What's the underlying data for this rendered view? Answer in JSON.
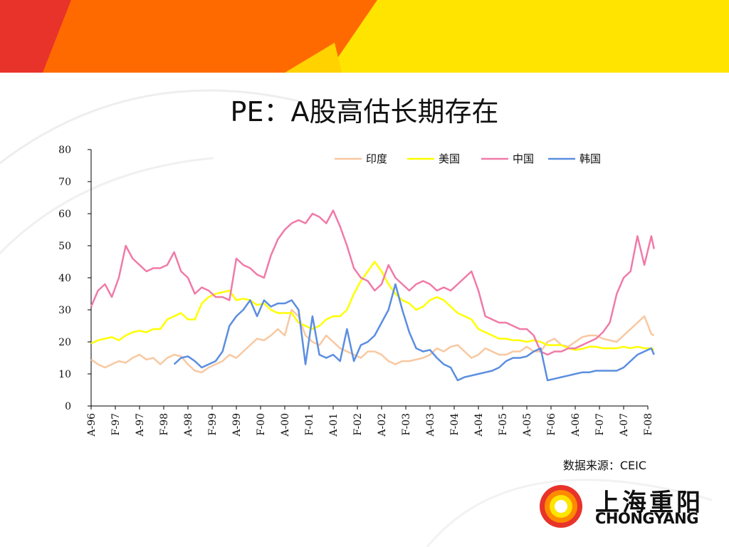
{
  "title": "PE：A股高估长期存在",
  "source": "数据来源：CEIC",
  "logo": {
    "cn": "上海重阳",
    "en": "CHONGYANG"
  },
  "colors": {
    "banner_red": "#e8332a",
    "banner_orange": "#ff6a00",
    "banner_yellow": "#ffe400"
  },
  "chart_data": {
    "type": "line",
    "title": "",
    "xlabel": "",
    "ylabel": "",
    "ylim": [
      0,
      80
    ],
    "yticks": [
      0,
      10,
      20,
      30,
      40,
      50,
      60,
      70,
      80
    ],
    "x_labels": [
      "A-96",
      "F-97",
      "A-97",
      "F-98",
      "A-98",
      "F-99",
      "A-99",
      "F-00",
      "A-00",
      "F-01",
      "A-01",
      "F-02",
      "A-02",
      "F-03",
      "A-03",
      "F-04",
      "A-04",
      "F-05",
      "A-05",
      "F-06",
      "A-06",
      "F-07",
      "A-07",
      "F-08"
    ],
    "legend_position": "top-right",
    "series": [
      {
        "name": "印度",
        "color": "#f8c8a0",
        "values": [
          [
            0,
            14.5
          ],
          [
            1,
            13
          ],
          [
            2,
            12
          ],
          [
            3,
            13
          ],
          [
            4,
            14
          ],
          [
            5,
            13.5
          ],
          [
            6,
            15
          ],
          [
            7,
            16
          ],
          [
            8,
            14.5
          ],
          [
            9,
            15
          ],
          [
            10,
            13
          ],
          [
            11,
            15
          ],
          [
            12,
            16
          ],
          [
            13,
            15.5
          ],
          [
            14,
            13
          ],
          [
            15,
            11
          ],
          [
            16,
            10.5
          ],
          [
            17,
            12
          ],
          [
            18,
            13
          ],
          [
            19,
            14
          ],
          [
            20,
            16
          ],
          [
            21,
            15
          ],
          [
            22,
            17
          ],
          [
            23,
            19
          ],
          [
            24,
            21
          ],
          [
            25,
            20.5
          ],
          [
            26,
            22
          ],
          [
            27,
            24
          ],
          [
            28,
            22
          ],
          [
            29,
            30
          ],
          [
            30,
            28
          ],
          [
            31,
            22
          ],
          [
            32,
            20
          ],
          [
            33,
            19
          ],
          [
            34,
            22
          ],
          [
            35,
            20
          ],
          [
            36,
            18
          ],
          [
            37,
            17
          ],
          [
            38,
            16
          ],
          [
            39,
            15
          ],
          [
            40,
            17
          ],
          [
            41,
            17
          ],
          [
            42,
            16
          ],
          [
            43,
            14
          ],
          [
            44,
            13
          ],
          [
            45,
            14
          ],
          [
            46,
            14
          ],
          [
            47,
            14.5
          ],
          [
            48,
            15
          ],
          [
            49,
            16
          ],
          [
            50,
            18
          ],
          [
            51,
            17
          ],
          [
            52,
            18.5
          ],
          [
            53,
            19
          ],
          [
            54,
            17
          ],
          [
            55,
            15
          ],
          [
            56,
            16
          ],
          [
            57,
            18
          ],
          [
            58,
            17
          ],
          [
            59,
            16
          ],
          [
            60,
            16
          ],
          [
            61,
            17
          ],
          [
            62,
            17
          ],
          [
            63,
            18.5
          ],
          [
            64,
            17
          ],
          [
            65,
            17
          ],
          [
            66,
            20
          ],
          [
            67,
            21
          ],
          [
            68,
            19
          ],
          [
            69,
            18.5
          ],
          [
            70,
            20
          ],
          [
            71,
            21.5
          ],
          [
            72,
            22
          ],
          [
            73,
            22
          ],
          [
            74,
            21
          ],
          [
            75,
            20.5
          ],
          [
            76,
            20
          ],
          [
            77,
            22
          ],
          [
            78,
            24
          ],
          [
            79,
            26
          ],
          [
            80,
            28
          ],
          [
            81,
            22.5
          ],
          [
            81.4,
            22
          ]
        ]
      },
      {
        "name": "美国",
        "color": "#ffff00",
        "values": [
          [
            0,
            19.5
          ],
          [
            1,
            20.5
          ],
          [
            2,
            21
          ],
          [
            3,
            21.5
          ],
          [
            4,
            20.5
          ],
          [
            5,
            22
          ],
          [
            6,
            23
          ],
          [
            7,
            23.5
          ],
          [
            8,
            23
          ],
          [
            9,
            24
          ],
          [
            10,
            24
          ],
          [
            11,
            27
          ],
          [
            12,
            28
          ],
          [
            13,
            29
          ],
          [
            14,
            27
          ],
          [
            15,
            27
          ],
          [
            16,
            32
          ],
          [
            17,
            34
          ],
          [
            18,
            35
          ],
          [
            19,
            35.5
          ],
          [
            20,
            36
          ],
          [
            21,
            33
          ],
          [
            22,
            33.5
          ],
          [
            23,
            33
          ],
          [
            24,
            31.5
          ],
          [
            25,
            32
          ],
          [
            26,
            30
          ],
          [
            27,
            29
          ],
          [
            28,
            29
          ],
          [
            29,
            29
          ],
          [
            30,
            26
          ],
          [
            31,
            25
          ],
          [
            32,
            24
          ],
          [
            33,
            25
          ],
          [
            34,
            27
          ],
          [
            35,
            28
          ],
          [
            36,
            28
          ],
          [
            37,
            30
          ],
          [
            38,
            35
          ],
          [
            39,
            39
          ],
          [
            40,
            42
          ],
          [
            41,
            45
          ],
          [
            42,
            42
          ],
          [
            43,
            38
          ],
          [
            44,
            35
          ],
          [
            45,
            33
          ],
          [
            46,
            32
          ],
          [
            47,
            30
          ],
          [
            48,
            31
          ],
          [
            49,
            33
          ],
          [
            50,
            34
          ],
          [
            51,
            33
          ],
          [
            52,
            31
          ],
          [
            53,
            29
          ],
          [
            54,
            28
          ],
          [
            55,
            27
          ],
          [
            56,
            24
          ],
          [
            57,
            23
          ],
          [
            58,
            22
          ],
          [
            59,
            21
          ],
          [
            60,
            21
          ],
          [
            61,
            20.5
          ],
          [
            62,
            20.5
          ],
          [
            63,
            20
          ],
          [
            64,
            20.5
          ],
          [
            65,
            20
          ],
          [
            66,
            19
          ],
          [
            67,
            19
          ],
          [
            68,
            19
          ],
          [
            69,
            18
          ],
          [
            70,
            17.5
          ],
          [
            71,
            17.8
          ],
          [
            72,
            18.5
          ],
          [
            73,
            18.5
          ],
          [
            74,
            18
          ],
          [
            75,
            18
          ],
          [
            76,
            18
          ],
          [
            77,
            18.5
          ],
          [
            78,
            18
          ],
          [
            79,
            18.5
          ],
          [
            80,
            18
          ],
          [
            81,
            18
          ],
          [
            81.4,
            17.5
          ]
        ]
      },
      {
        "name": "中国",
        "color": "#f07aa8",
        "values": [
          [
            0,
            31
          ],
          [
            1,
            36
          ],
          [
            2,
            38
          ],
          [
            3,
            34
          ],
          [
            4,
            40
          ],
          [
            5,
            50
          ],
          [
            6,
            46
          ],
          [
            7,
            44
          ],
          [
            8,
            42
          ],
          [
            9,
            43
          ],
          [
            10,
            43
          ],
          [
            11,
            44
          ],
          [
            12,
            48
          ],
          [
            13,
            42
          ],
          [
            14,
            40
          ],
          [
            15,
            35
          ],
          [
            16,
            37
          ],
          [
            17,
            36
          ],
          [
            18,
            34
          ],
          [
            19,
            34
          ],
          [
            20,
            33
          ],
          [
            21,
            46
          ],
          [
            22,
            44
          ],
          [
            23,
            43
          ],
          [
            24,
            41
          ],
          [
            25,
            40
          ],
          [
            26,
            47
          ],
          [
            27,
            52
          ],
          [
            28,
            55
          ],
          [
            29,
            57
          ],
          [
            30,
            58
          ],
          [
            31,
            57
          ],
          [
            32,
            60
          ],
          [
            33,
            59
          ],
          [
            34,
            57
          ],
          [
            35,
            61
          ],
          [
            36,
            56
          ],
          [
            37,
            50
          ],
          [
            38,
            43
          ],
          [
            39,
            40
          ],
          [
            40,
            39
          ],
          [
            41,
            36
          ],
          [
            42,
            38
          ],
          [
            43,
            44
          ],
          [
            44,
            40
          ],
          [
            45,
            38
          ],
          [
            46,
            36
          ],
          [
            47,
            38
          ],
          [
            48,
            39
          ],
          [
            49,
            38
          ],
          [
            50,
            36
          ],
          [
            51,
            37
          ],
          [
            52,
            36
          ],
          [
            53,
            38
          ],
          [
            54,
            40
          ],
          [
            55,
            42
          ],
          [
            56,
            36
          ],
          [
            57,
            28
          ],
          [
            58,
            27
          ],
          [
            59,
            26
          ],
          [
            60,
            26
          ],
          [
            61,
            25
          ],
          [
            62,
            24
          ],
          [
            63,
            24
          ],
          [
            64,
            22
          ],
          [
            65,
            17
          ],
          [
            66,
            16
          ],
          [
            67,
            17
          ],
          [
            68,
            17
          ],
          [
            69,
            18
          ],
          [
            70,
            18
          ],
          [
            71,
            19
          ],
          [
            72,
            20
          ],
          [
            73,
            21
          ],
          [
            74,
            23
          ],
          [
            75,
            26
          ],
          [
            76,
            35
          ],
          [
            77,
            40
          ],
          [
            78,
            42
          ],
          [
            79,
            53
          ],
          [
            80,
            44
          ],
          [
            81,
            53
          ],
          [
            81.4,
            49
          ]
        ]
      },
      {
        "name": "韩国",
        "color": "#5b8ee0",
        "values": [
          [
            12,
            13
          ],
          [
            13,
            15
          ],
          [
            14,
            15.5
          ],
          [
            15,
            14
          ],
          [
            16,
            12
          ],
          [
            17,
            13
          ],
          [
            18,
            14
          ],
          [
            19,
            17
          ],
          [
            20,
            25
          ],
          [
            21,
            28
          ],
          [
            22,
            30
          ],
          [
            23,
            33
          ],
          [
            24,
            28
          ],
          [
            25,
            33
          ],
          [
            26,
            31
          ],
          [
            27,
            32
          ],
          [
            28,
            32
          ],
          [
            29,
            33
          ],
          [
            30,
            30
          ],
          [
            31,
            13
          ],
          [
            32,
            28
          ],
          [
            33,
            16
          ],
          [
            34,
            15
          ],
          [
            35,
            16
          ],
          [
            36,
            14
          ],
          [
            37,
            24
          ],
          [
            38,
            14
          ],
          [
            39,
            19
          ],
          [
            40,
            20
          ],
          [
            41,
            22
          ],
          [
            42,
            26
          ],
          [
            43,
            30
          ],
          [
            44,
            38
          ],
          [
            45,
            30
          ],
          [
            46,
            23
          ],
          [
            47,
            18
          ],
          [
            48,
            17
          ],
          [
            49,
            17.5
          ],
          [
            50,
            15
          ],
          [
            51,
            13
          ],
          [
            52,
            12
          ],
          [
            53,
            8
          ],
          [
            54,
            9
          ],
          [
            55,
            9.5
          ],
          [
            56,
            10
          ],
          [
            57,
            10.5
          ],
          [
            58,
            11
          ],
          [
            59,
            12
          ],
          [
            60,
            14
          ],
          [
            61,
            15
          ],
          [
            62,
            15
          ],
          [
            63,
            15.5
          ],
          [
            64,
            17
          ],
          [
            65,
            18
          ],
          [
            66,
            8
          ],
          [
            67,
            8.5
          ],
          [
            68,
            9
          ],
          [
            69,
            9.5
          ],
          [
            70,
            10
          ],
          [
            71,
            10.5
          ],
          [
            72,
            10.5
          ],
          [
            73,
            11
          ],
          [
            74,
            11
          ],
          [
            75,
            11
          ],
          [
            76,
            11
          ],
          [
            77,
            12
          ],
          [
            78,
            14
          ],
          [
            79,
            16
          ],
          [
            80,
            17
          ],
          [
            81,
            18
          ],
          [
            81.4,
            16
          ]
        ]
      }
    ]
  }
}
